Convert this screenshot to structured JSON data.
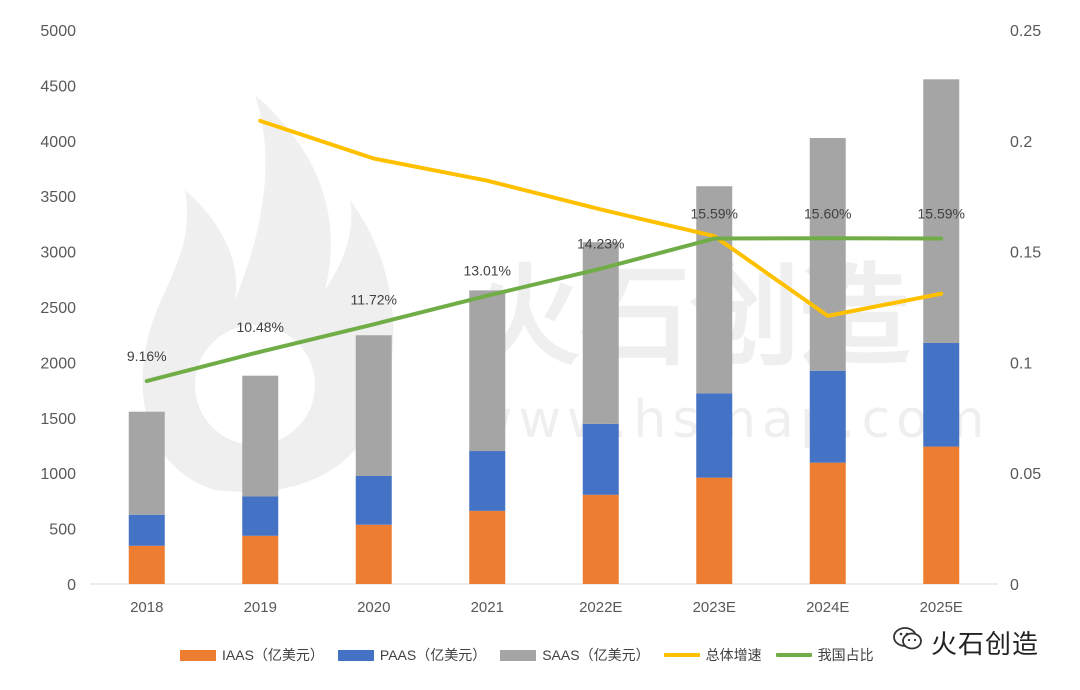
{
  "chart_data": {
    "type": "bar",
    "categories": [
      "2018",
      "2019",
      "2020",
      "2021",
      "2022E",
      "2023E",
      "2024E",
      "2025E"
    ],
    "stacked": true,
    "series": [
      {
        "name": "IAAS（亿美元）",
        "kind": "bar",
        "axis": "left",
        "color": "#ED7D31",
        "values": [
          345,
          435,
          535,
          660,
          805,
          960,
          1095,
          1240
        ]
      },
      {
        "name": "PAAS（亿美元）",
        "kind": "bar",
        "axis": "left",
        "color": "#4472C4",
        "values": [
          280,
          355,
          440,
          540,
          640,
          760,
          830,
          935
        ]
      },
      {
        "name": "SAAS（亿美元）",
        "kind": "bar",
        "axis": "left",
        "color": "#A5A5A5",
        "values": [
          930,
          1090,
          1270,
          1450,
          1640,
          1870,
          2100,
          2380
        ]
      },
      {
        "name": "总体增速",
        "kind": "line",
        "axis": "right",
        "color": "#FFC000",
        "values": [
          null,
          0.209,
          0.192,
          0.182,
          0.169,
          0.157,
          0.121,
          0.131
        ]
      },
      {
        "name": "我国占比",
        "kind": "line",
        "axis": "right",
        "color": "#70AD47",
        "values": [
          0.0916,
          0.1048,
          0.1172,
          0.1301,
          0.1423,
          0.1559,
          0.156,
          0.1559
        ],
        "labels": [
          "9.16%",
          "10.48%",
          "11.72%",
          "13.01%",
          "14.23%",
          "15.59%",
          "15.60%",
          "15.59%"
        ]
      }
    ],
    "ylim_left": [
      0,
      5000
    ],
    "yticks_left": [
      "0",
      "500",
      "1000",
      "1500",
      "2000",
      "2500",
      "3000",
      "3500",
      "4000",
      "4500",
      "5000"
    ],
    "ylim_right": [
      0,
      0.25
    ],
    "yticks_right": [
      "0",
      "0.05",
      "0.1",
      "0.15",
      "0.2",
      "0.25"
    ],
    "grid": false,
    "legend_position": "bottom",
    "title": "",
    "xlabel": "",
    "ylabel": ""
  },
  "watermark": {
    "text": "火石创造",
    "url": "www.hsmap.com"
  },
  "brand": {
    "label": "火石创造",
    "icon": "wechat-icon"
  }
}
